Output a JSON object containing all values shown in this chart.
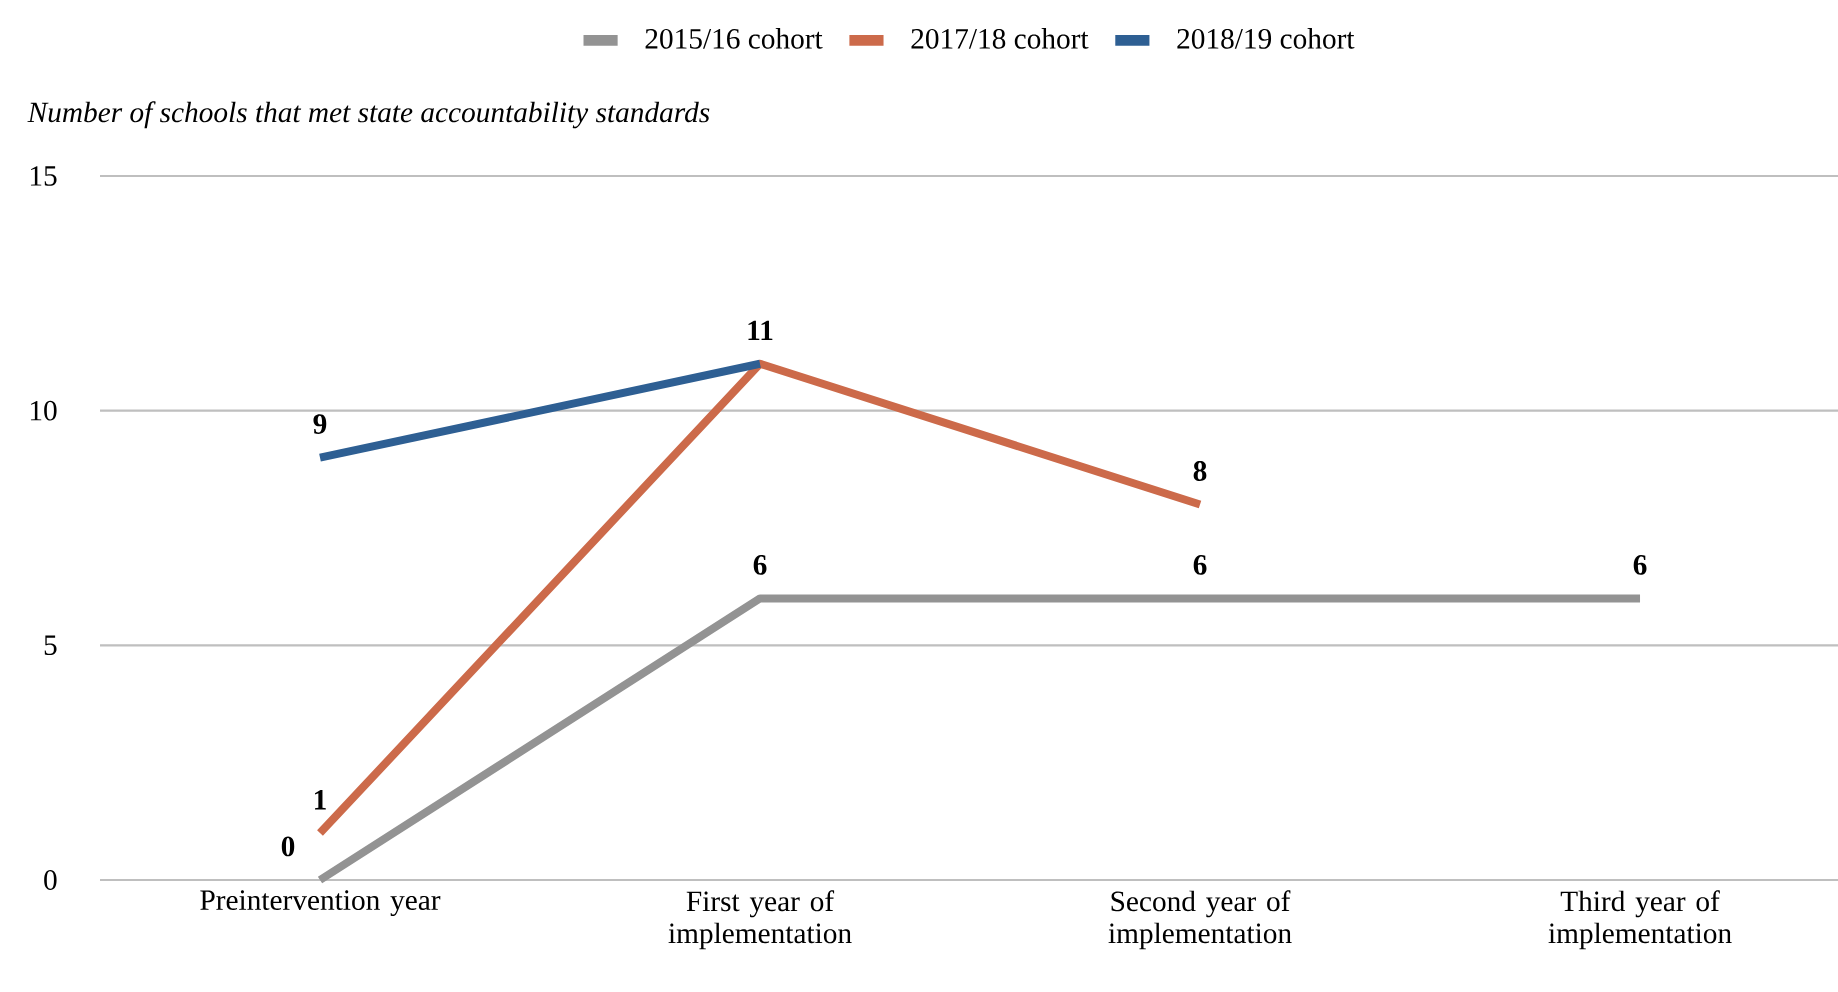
{
  "chart_data": {
    "type": "line",
    "ylabel": "Number of schools that met state accountability standards",
    "categories": [
      "Preintervention year",
      "First year of implementation",
      "Second year of implementation",
      "Third year of implementation"
    ],
    "series": [
      {
        "name": "2015/16 cohort",
        "color": "#939393",
        "values": [
          0,
          6,
          6,
          6
        ],
        "value_labels": [
          "0",
          "6",
          "6",
          "6"
        ]
      },
      {
        "name": "2017/18 cohort",
        "color": "#cc6a4a",
        "values": [
          1,
          11,
          8,
          null
        ],
        "value_labels": [
          "1",
          "11",
          "8",
          null
        ]
      },
      {
        "name": "2018/19 cohort",
        "color": "#2e5f93",
        "values": [
          9,
          11,
          null,
          null
        ],
        "value_labels": [
          "9",
          null,
          null,
          null
        ]
      }
    ],
    "ylim": [
      0,
      15
    ],
    "yticks": [
      0,
      5,
      10,
      15
    ],
    "grid": "y",
    "legend": "top",
    "line_style": "solid"
  }
}
